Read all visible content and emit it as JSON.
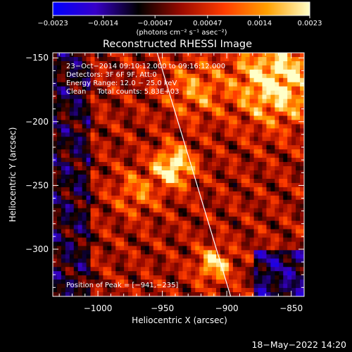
{
  "chart_data": {
    "type": "heatmap",
    "title": "Reconstructed RHESSI Image",
    "xlabel": "Heliocentric X (arcsec)",
    "ylabel": "Heliocentric Y (arcsec)",
    "xlim": [
      -1035,
      -840
    ],
    "ylim": [
      -337,
      -146
    ],
    "x_ticks": [
      -1000,
      -950,
      -900,
      -850
    ],
    "x_tick_labels": [
      "−1000",
      "−950",
      "−900",
      "−850"
    ],
    "y_ticks": [
      -150,
      -200,
      -250,
      -300
    ],
    "y_tick_labels": [
      "−150",
      "−200",
      "−250",
      "−300"
    ],
    "colorbar": {
      "min": -0.0023,
      "max": 0.0023,
      "ticks": [
        -0.0023,
        -0.0014,
        -0.00047,
        0.00047,
        0.0014,
        0.0023
      ],
      "tick_labels": [
        "−0.0023",
        "−0.0014",
        "−0.00047",
        "0.00047",
        "0.0014",
        "0.0023"
      ],
      "colors": [
        "#0000ff",
        "#3700c8",
        "#000000",
        "#9a0a00",
        "#ff3c00",
        "#ffa000",
        "#ffffc8"
      ]
    },
    "colorbar_units": "(photons cm⁻² s⁻¹ asec⁻²)",
    "annotations": {
      "time_range": "23−Oct−2014 09:10:12.000 to 09:16:12.000",
      "detectors": "Detectors: 3F 6F 9F, Att:0",
      "energy": "Energy Range: 12.0 − 25.0 keV",
      "clean": "Clean     Total counts: 5.83E+03",
      "peak": "Position of Peak = [−941,−235]"
    },
    "peak_position": [
      -941,
      -235
    ],
    "limb_line": [
      [
        -954,
        -146
      ],
      [
        -897,
        -337
      ]
    ],
    "sources": [
      {
        "x": -941,
        "y": -235,
        "sigma": 10,
        "amp": 1.0
      },
      {
        "x": -910,
        "y": -312,
        "sigma": 9,
        "amp": 0.75
      },
      {
        "x": -862,
        "y": -168,
        "sigma": 22,
        "amp": 0.9
      },
      {
        "x": -925,
        "y": -175,
        "sigma": 15,
        "amp": 0.45
      },
      {
        "x": -970,
        "y": -255,
        "sigma": 12,
        "amp": 0.4
      }
    ],
    "grid": false
  },
  "footer": {
    "timestamp": "18−May−2022 14:20"
  }
}
